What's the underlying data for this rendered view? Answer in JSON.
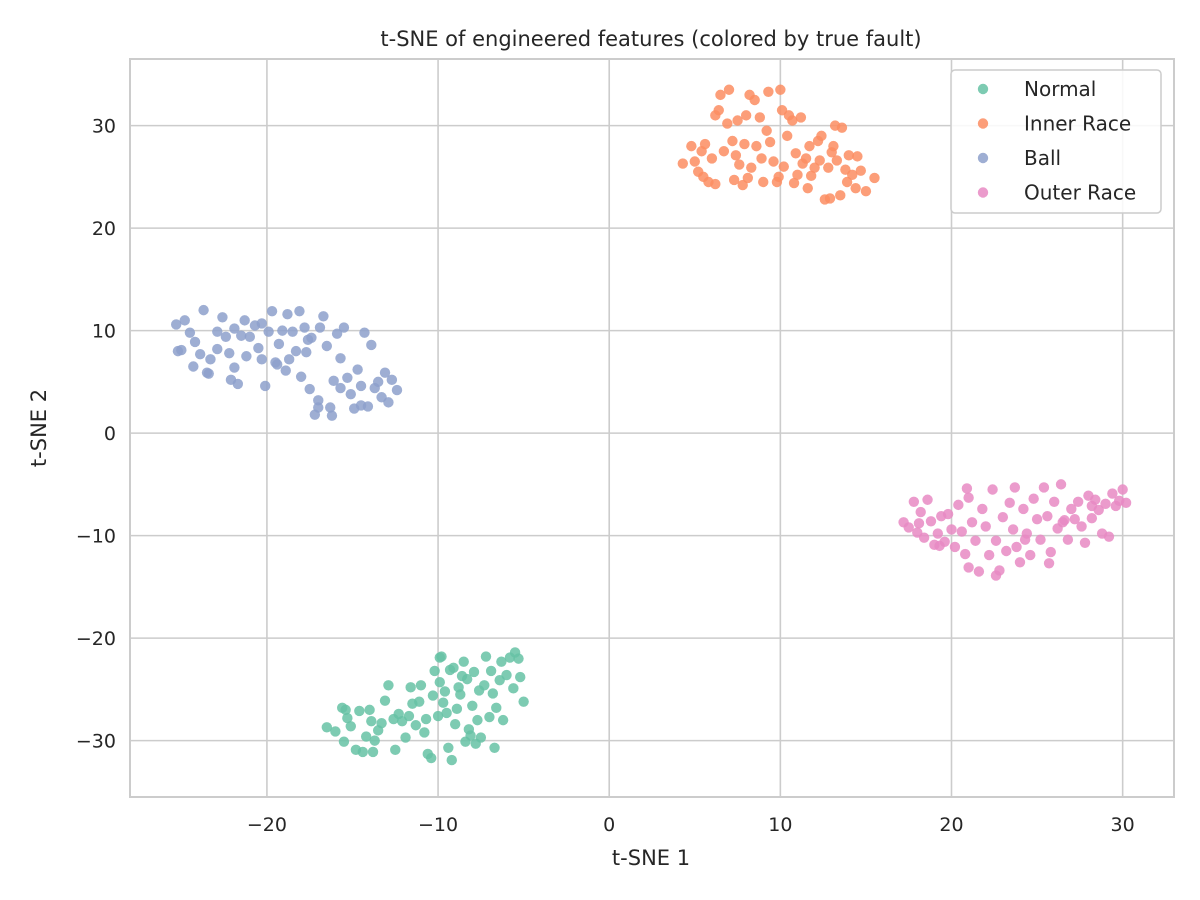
{
  "chart_data": {
    "type": "scatter",
    "title": "t-SNE of engineered features (colored by true fault)",
    "xlabel": "t-SNE 1",
    "ylabel": "t-SNE 2",
    "xlim": [
      -28,
      33
    ],
    "ylim": [
      -35.5,
      36.5
    ],
    "xticks": [
      -20,
      -10,
      0,
      10,
      20,
      30
    ],
    "yticks": [
      -30,
      -20,
      -10,
      0,
      10,
      20,
      30
    ],
    "xtick_labels": [
      "−20",
      "−10",
      "0",
      "10",
      "20",
      "30"
    ],
    "ytick_labels": [
      "−30",
      "−20",
      "−10",
      "0",
      "10",
      "20",
      "30"
    ],
    "grid": true,
    "legend_position": "top-right",
    "series": [
      {
        "name": "Normal",
        "color": "#66c2a5",
        "points": [
          [
            -16.5,
            -28.7
          ],
          [
            -16.0,
            -29.1
          ],
          [
            -15.6,
            -26.8
          ],
          [
            -15.3,
            -27.8
          ],
          [
            -15.5,
            -30.1
          ],
          [
            -15.1,
            -28.6
          ],
          [
            -14.8,
            -30.9
          ],
          [
            -14.6,
            -27.1
          ],
          [
            -14.4,
            -31.1
          ],
          [
            -14.2,
            -29.6
          ],
          [
            -14.0,
            -27.0
          ],
          [
            -13.9,
            -28.1
          ],
          [
            -13.7,
            -30.0
          ],
          [
            -13.5,
            -29.0
          ],
          [
            -13.3,
            -28.3
          ],
          [
            -13.1,
            -26.1
          ],
          [
            -12.9,
            -24.6
          ],
          [
            -12.6,
            -27.9
          ],
          [
            -12.5,
            -30.9
          ],
          [
            -12.3,
            -27.4
          ],
          [
            -12.1,
            -28.1
          ],
          [
            -11.9,
            -29.7
          ],
          [
            -11.7,
            -27.6
          ],
          [
            -11.5,
            -26.4
          ],
          [
            -11.3,
            -28.5
          ],
          [
            -11.1,
            -26.2
          ],
          [
            -11.0,
            -24.6
          ],
          [
            -10.8,
            -29.2
          ],
          [
            -10.7,
            -27.9
          ],
          [
            -10.6,
            -31.3
          ],
          [
            -10.4,
            -31.7
          ],
          [
            -10.3,
            -25.6
          ],
          [
            -10.2,
            -23.2
          ],
          [
            -10.0,
            -27.6
          ],
          [
            -9.9,
            -24.3
          ],
          [
            -9.8,
            -21.8
          ],
          [
            -9.7,
            -26.3
          ],
          [
            -9.6,
            -25.2
          ],
          [
            -9.5,
            -27.3
          ],
          [
            -9.4,
            -30.7
          ],
          [
            -9.3,
            -23.1
          ],
          [
            -9.2,
            -31.9
          ],
          [
            -9.1,
            -22.9
          ],
          [
            -9.0,
            -28.4
          ],
          [
            -8.9,
            -26.9
          ],
          [
            -8.8,
            -24.8
          ],
          [
            -8.7,
            -25.5
          ],
          [
            -8.6,
            -23.7
          ],
          [
            -8.5,
            -22.3
          ],
          [
            -8.4,
            -30.1
          ],
          [
            -8.3,
            -24.0
          ],
          [
            -8.1,
            -29.5
          ],
          [
            -8.0,
            -26.6
          ],
          [
            -7.9,
            -23.3
          ],
          [
            -7.8,
            -30.3
          ],
          [
            -7.7,
            -28.0
          ],
          [
            -7.6,
            -25.1
          ],
          [
            -7.5,
            -29.7
          ],
          [
            -7.3,
            -24.6
          ],
          [
            -7.2,
            -21.8
          ],
          [
            -7.0,
            -27.7
          ],
          [
            -6.9,
            -23.2
          ],
          [
            -6.8,
            -25.4
          ],
          [
            -6.7,
            -30.7
          ],
          [
            -6.6,
            -26.8
          ],
          [
            -6.4,
            -24.1
          ],
          [
            -6.3,
            -22.3
          ],
          [
            -6.2,
            -28.0
          ],
          [
            -6.0,
            -23.6
          ],
          [
            -5.8,
            -21.9
          ],
          [
            -5.6,
            -24.9
          ],
          [
            -5.5,
            -21.4
          ],
          [
            -5.3,
            -22.0
          ],
          [
            -5.2,
            -23.8
          ],
          [
            -5.0,
            -26.2
          ],
          [
            -9.9,
            -21.9
          ],
          [
            -13.8,
            -31.1
          ],
          [
            -15.4,
            -27.0
          ],
          [
            -11.6,
            -24.8
          ],
          [
            -8.2,
            -28.9
          ]
        ]
      },
      {
        "name": "Inner Race",
        "color": "#fc8d62",
        "points": [
          [
            4.3,
            26.3
          ],
          [
            4.8,
            28.0
          ],
          [
            5.0,
            26.5
          ],
          [
            5.2,
            25.5
          ],
          [
            5.4,
            27.5
          ],
          [
            5.6,
            28.2
          ],
          [
            5.8,
            24.5
          ],
          [
            6.0,
            26.8
          ],
          [
            6.2,
            24.3
          ],
          [
            6.4,
            31.5
          ],
          [
            6.5,
            33.0
          ],
          [
            6.7,
            27.5
          ],
          [
            6.9,
            30.2
          ],
          [
            7.0,
            33.5
          ],
          [
            7.2,
            28.5
          ],
          [
            7.3,
            24.7
          ],
          [
            7.5,
            30.5
          ],
          [
            7.6,
            26.2
          ],
          [
            7.8,
            24.2
          ],
          [
            7.9,
            28.2
          ],
          [
            8.0,
            31.0
          ],
          [
            8.2,
            33.0
          ],
          [
            8.3,
            25.9
          ],
          [
            8.5,
            32.5
          ],
          [
            8.6,
            28.0
          ],
          [
            8.8,
            30.8
          ],
          [
            8.9,
            26.8
          ],
          [
            9.0,
            24.5
          ],
          [
            9.2,
            29.5
          ],
          [
            9.3,
            33.3
          ],
          [
            9.4,
            28.4
          ],
          [
            9.6,
            26.5
          ],
          [
            9.8,
            24.5
          ],
          [
            10.0,
            33.5
          ],
          [
            10.1,
            31.5
          ],
          [
            10.2,
            26.0
          ],
          [
            10.4,
            29.0
          ],
          [
            10.5,
            31.0
          ],
          [
            10.7,
            30.5
          ],
          [
            10.8,
            24.4
          ],
          [
            10.9,
            27.3
          ],
          [
            11.0,
            25.2
          ],
          [
            11.2,
            30.8
          ],
          [
            11.3,
            26.3
          ],
          [
            11.5,
            26.8
          ],
          [
            11.6,
            23.9
          ],
          [
            11.8,
            25.1
          ],
          [
            12.0,
            25.9
          ],
          [
            12.2,
            28.5
          ],
          [
            12.4,
            29.0
          ],
          [
            12.6,
            22.8
          ],
          [
            12.8,
            25.9
          ],
          [
            13.0,
            27.4
          ],
          [
            13.1,
            28.0
          ],
          [
            13.3,
            26.6
          ],
          [
            13.5,
            23.2
          ],
          [
            13.6,
            29.8
          ],
          [
            13.8,
            25.7
          ],
          [
            13.9,
            24.5
          ],
          [
            14.0,
            27.1
          ],
          [
            14.2,
            25.2
          ],
          [
            14.4,
            23.9
          ],
          [
            14.5,
            27.0
          ],
          [
            14.7,
            25.6
          ],
          [
            15.0,
            23.6
          ],
          [
            15.5,
            24.9
          ],
          [
            12.9,
            22.9
          ],
          [
            12.3,
            26.6
          ],
          [
            6.2,
            31.0
          ],
          [
            7.4,
            27.1
          ],
          [
            9.9,
            25.0
          ],
          [
            11.7,
            28.0
          ],
          [
            8.1,
            24.9
          ],
          [
            13.2,
            30.0
          ],
          [
            5.5,
            25.0
          ]
        ]
      },
      {
        "name": "Ball",
        "color": "#8da0cb",
        "points": [
          [
            -25.3,
            10.6
          ],
          [
            -25.2,
            8.0
          ],
          [
            -25.0,
            8.1
          ],
          [
            -24.8,
            11.0
          ],
          [
            -24.5,
            9.8
          ],
          [
            -24.3,
            6.5
          ],
          [
            -24.2,
            8.9
          ],
          [
            -23.9,
            7.7
          ],
          [
            -23.7,
            12.0
          ],
          [
            -23.5,
            5.9
          ],
          [
            -23.3,
            7.2
          ],
          [
            -22.9,
            9.9
          ],
          [
            -22.6,
            11.3
          ],
          [
            -22.4,
            9.4
          ],
          [
            -22.2,
            7.8
          ],
          [
            -22.1,
            5.2
          ],
          [
            -21.9,
            10.2
          ],
          [
            -21.7,
            4.8
          ],
          [
            -21.5,
            9.5
          ],
          [
            -21.3,
            11.0
          ],
          [
            -21.2,
            7.5
          ],
          [
            -21.0,
            9.4
          ],
          [
            -20.7,
            10.5
          ],
          [
            -20.5,
            8.3
          ],
          [
            -20.3,
            7.2
          ],
          [
            -20.1,
            4.6
          ],
          [
            -19.9,
            9.9
          ],
          [
            -19.7,
            11.9
          ],
          [
            -19.5,
            6.9
          ],
          [
            -19.3,
            8.7
          ],
          [
            -19.1,
            10.0
          ],
          [
            -18.9,
            6.1
          ],
          [
            -18.7,
            7.2
          ],
          [
            -18.5,
            9.9
          ],
          [
            -18.3,
            8.0
          ],
          [
            -18.1,
            11.9
          ],
          [
            -18.0,
            5.5
          ],
          [
            -17.8,
            10.3
          ],
          [
            -17.7,
            7.9
          ],
          [
            -17.5,
            4.3
          ],
          [
            -17.4,
            9.3
          ],
          [
            -17.2,
            1.8
          ],
          [
            -17.0,
            3.2
          ],
          [
            -16.9,
            10.3
          ],
          [
            -16.7,
            11.4
          ],
          [
            -16.5,
            8.5
          ],
          [
            -16.3,
            2.5
          ],
          [
            -16.1,
            5.1
          ],
          [
            -15.9,
            9.7
          ],
          [
            -15.7,
            7.3
          ],
          [
            -15.5,
            10.3
          ],
          [
            -15.3,
            5.4
          ],
          [
            -15.1,
            3.8
          ],
          [
            -14.9,
            2.4
          ],
          [
            -14.7,
            6.2
          ],
          [
            -14.5,
            4.6
          ],
          [
            -14.3,
            9.8
          ],
          [
            -14.1,
            2.6
          ],
          [
            -13.9,
            8.6
          ],
          [
            -13.7,
            4.4
          ],
          [
            -13.5,
            5.0
          ],
          [
            -13.3,
            3.5
          ],
          [
            -13.1,
            5.9
          ],
          [
            -12.9,
            3.0
          ],
          [
            -12.7,
            5.2
          ],
          [
            -12.4,
            4.2
          ],
          [
            -14.5,
            2.7
          ],
          [
            -16.2,
            1.7
          ],
          [
            -17.0,
            2.5
          ],
          [
            -20.3,
            10.7
          ],
          [
            -22.9,
            8.2
          ],
          [
            -18.8,
            11.6
          ],
          [
            -15.7,
            4.4
          ],
          [
            -21.9,
            6.4
          ],
          [
            -23.4,
            5.8
          ],
          [
            -17.6,
            9.1
          ],
          [
            -19.4,
            6.7
          ]
        ]
      },
      {
        "name": "Outer Race",
        "color": "#e78ac3",
        "points": [
          [
            17.2,
            -8.7
          ],
          [
            17.5,
            -9.2
          ],
          [
            17.8,
            -6.7
          ],
          [
            18.0,
            -9.7
          ],
          [
            18.2,
            -7.7
          ],
          [
            18.4,
            -10.2
          ],
          [
            18.6,
            -6.5
          ],
          [
            18.8,
            -8.6
          ],
          [
            19.0,
            -10.9
          ],
          [
            19.2,
            -9.8
          ],
          [
            19.4,
            -8.1
          ],
          [
            19.6,
            -10.6
          ],
          [
            19.8,
            -7.9
          ],
          [
            20.0,
            -9.4
          ],
          [
            20.2,
            -11.1
          ],
          [
            20.4,
            -7.0
          ],
          [
            20.6,
            -9.6
          ],
          [
            20.8,
            -11.8
          ],
          [
            21.0,
            -6.3
          ],
          [
            21.2,
            -8.7
          ],
          [
            21.4,
            -10.5
          ],
          [
            21.6,
            -13.5
          ],
          [
            21.8,
            -7.4
          ],
          [
            22.0,
            -9.1
          ],
          [
            22.2,
            -11.9
          ],
          [
            22.4,
            -5.5
          ],
          [
            22.6,
            -10.5
          ],
          [
            22.8,
            -13.4
          ],
          [
            23.0,
            -8.2
          ],
          [
            23.2,
            -11.5
          ],
          [
            23.4,
            -6.8
          ],
          [
            23.6,
            -9.4
          ],
          [
            23.8,
            -11.1
          ],
          [
            24.0,
            -12.6
          ],
          [
            24.2,
            -7.4
          ],
          [
            24.4,
            -9.8
          ],
          [
            24.6,
            -11.9
          ],
          [
            24.8,
            -6.4
          ],
          [
            25.0,
            -8.4
          ],
          [
            25.2,
            -10.4
          ],
          [
            25.4,
            -5.3
          ],
          [
            25.6,
            -8.1
          ],
          [
            25.8,
            -11.6
          ],
          [
            26.0,
            -6.7
          ],
          [
            26.2,
            -9.3
          ],
          [
            26.4,
            -5.0
          ],
          [
            26.6,
            -8.5
          ],
          [
            26.8,
            -10.4
          ],
          [
            27.0,
            -7.4
          ],
          [
            27.2,
            -8.4
          ],
          [
            27.4,
            -6.7
          ],
          [
            27.6,
            -9.1
          ],
          [
            27.8,
            -10.7
          ],
          [
            28.0,
            -6.1
          ],
          [
            28.2,
            -8.3
          ],
          [
            28.4,
            -6.5
          ],
          [
            28.6,
            -7.5
          ],
          [
            28.8,
            -9.8
          ],
          [
            29.0,
            -6.9
          ],
          [
            29.2,
            -10.1
          ],
          [
            29.4,
            -5.9
          ],
          [
            29.6,
            -7.1
          ],
          [
            29.8,
            -6.6
          ],
          [
            30.0,
            -5.5
          ],
          [
            30.2,
            -6.8
          ],
          [
            21.0,
            -13.1
          ],
          [
            22.6,
            -13.9
          ],
          [
            24.3,
            -10.4
          ],
          [
            19.3,
            -11.0
          ],
          [
            26.5,
            -8.7
          ],
          [
            20.9,
            -5.4
          ],
          [
            28.2,
            -7.1
          ],
          [
            23.7,
            -5.3
          ],
          [
            25.7,
            -12.7
          ],
          [
            18.1,
            -8.8
          ]
        ]
      }
    ]
  }
}
